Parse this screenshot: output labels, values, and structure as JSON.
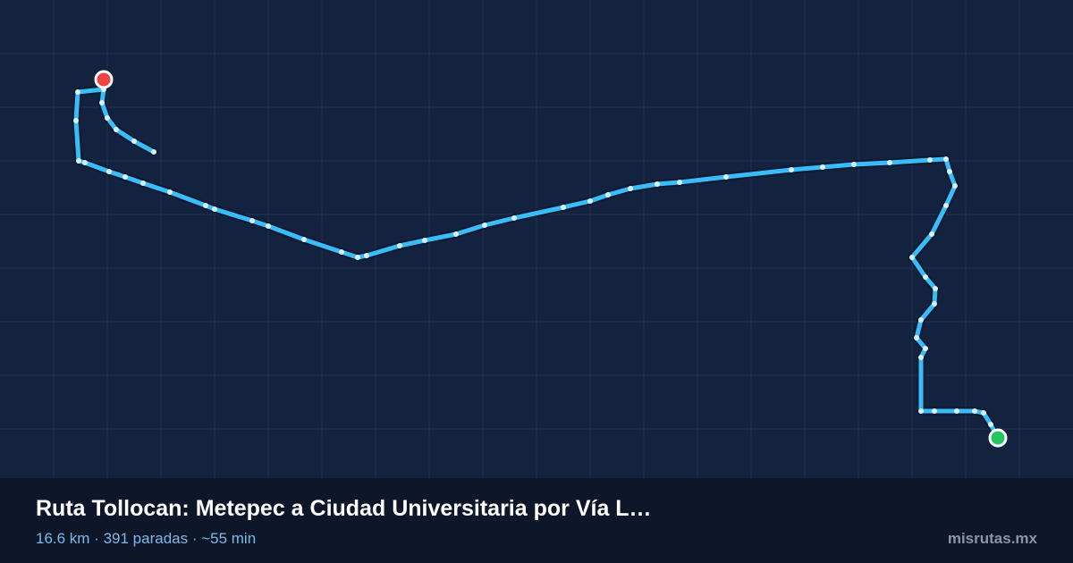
{
  "route_card": {
    "title": "Ruta Tollocan: Metepec a Ciudad Universitaria por Vía L…",
    "subtitle": "16.6 km · 391 paradas · ~55 min",
    "brand": "misrutas.mx"
  }
}
